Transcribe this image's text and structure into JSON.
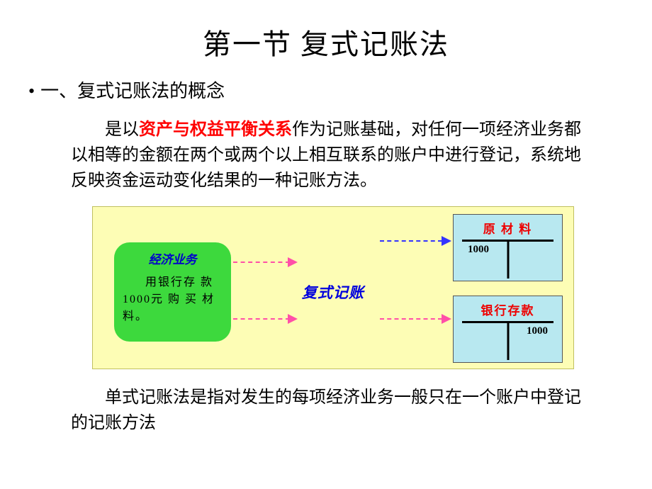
{
  "title": "第一节  复式记账法",
  "bullet_char": "•",
  "heading": "一、复式记账法的概念",
  "para1_before": "是以",
  "para1_highlight": "资产与权益平衡关系",
  "para1_after": "作为记账基础，对任何一项经济业务都以相等的金额在两个或两个以上相互联系的账户中进行登记，系统地反映资金运动变化结果的一种记账方法。",
  "diagram": {
    "background": "#fdfdb5",
    "green_box": {
      "bg": "#3dd93d",
      "title": "经济业务",
      "title_color": "#0000cc",
      "text": "用银行存 款 1000元 购 买 材料。"
    },
    "center_label": "复式记账",
    "center_color": "#0000dd",
    "arrows": {
      "pink_color": "#ff4fa8",
      "blue_color": "#3333ff"
    },
    "t_top": {
      "bg": "#b8e8f0",
      "title": "原 材 料",
      "title_color": "#ee0000",
      "left_val": "1000",
      "right_val": ""
    },
    "t_bottom": {
      "bg": "#b8e8f0",
      "title": "银行存款",
      "title_color": "#ee0000",
      "left_val": "",
      "right_val": "1000"
    }
  },
  "para2": "单式记账法是指对发生的每项经济业务一般只在一个账户中登记的记账方法"
}
